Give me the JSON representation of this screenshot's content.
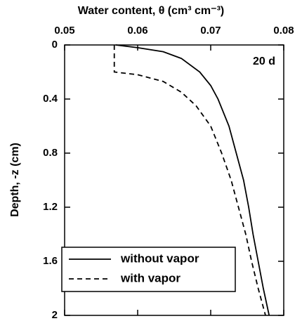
{
  "chart_data": {
    "type": "line",
    "xlabel": "Water content, θ (cm³ cm⁻³)",
    "ylabel": "Depth, -z (cm)",
    "annotation": "20 d",
    "xlim": [
      0.05,
      0.08
    ],
    "xticks": [
      0.05,
      0.06,
      0.07,
      0.08
    ],
    "ylim": [
      0,
      2
    ],
    "yticks": [
      0,
      0.4,
      0.8,
      1.2,
      1.6,
      2
    ],
    "legend": "lower left",
    "series": [
      {
        "name": "without vapor",
        "color": "#000000",
        "dashed": false,
        "x": [
          0,
          0.02,
          0.05,
          0.1,
          0.2,
          0.3,
          0.4,
          0.6,
          0.8,
          1.0,
          1.2,
          1.4,
          1.6,
          1.8,
          2.0
        ],
        "values": [
          0.057,
          0.06,
          0.0635,
          0.066,
          0.0685,
          0.07,
          0.071,
          0.0725,
          0.0735,
          0.0745,
          0.0752,
          0.0758,
          0.0765,
          0.0772,
          0.078
        ]
      },
      {
        "name": "with vapor",
        "color": "#000000",
        "dashed": true,
        "x": [
          0,
          0.2,
          0.22,
          0.27,
          0.35,
          0.45,
          0.6,
          0.8,
          1.0,
          1.2,
          1.4,
          1.6,
          1.8,
          2.0
        ],
        "values": [
          0.0568,
          0.0568,
          0.06,
          0.0635,
          0.066,
          0.068,
          0.07,
          0.0715,
          0.0728,
          0.0738,
          0.0748,
          0.0756,
          0.0765,
          0.0775
        ]
      }
    ]
  }
}
